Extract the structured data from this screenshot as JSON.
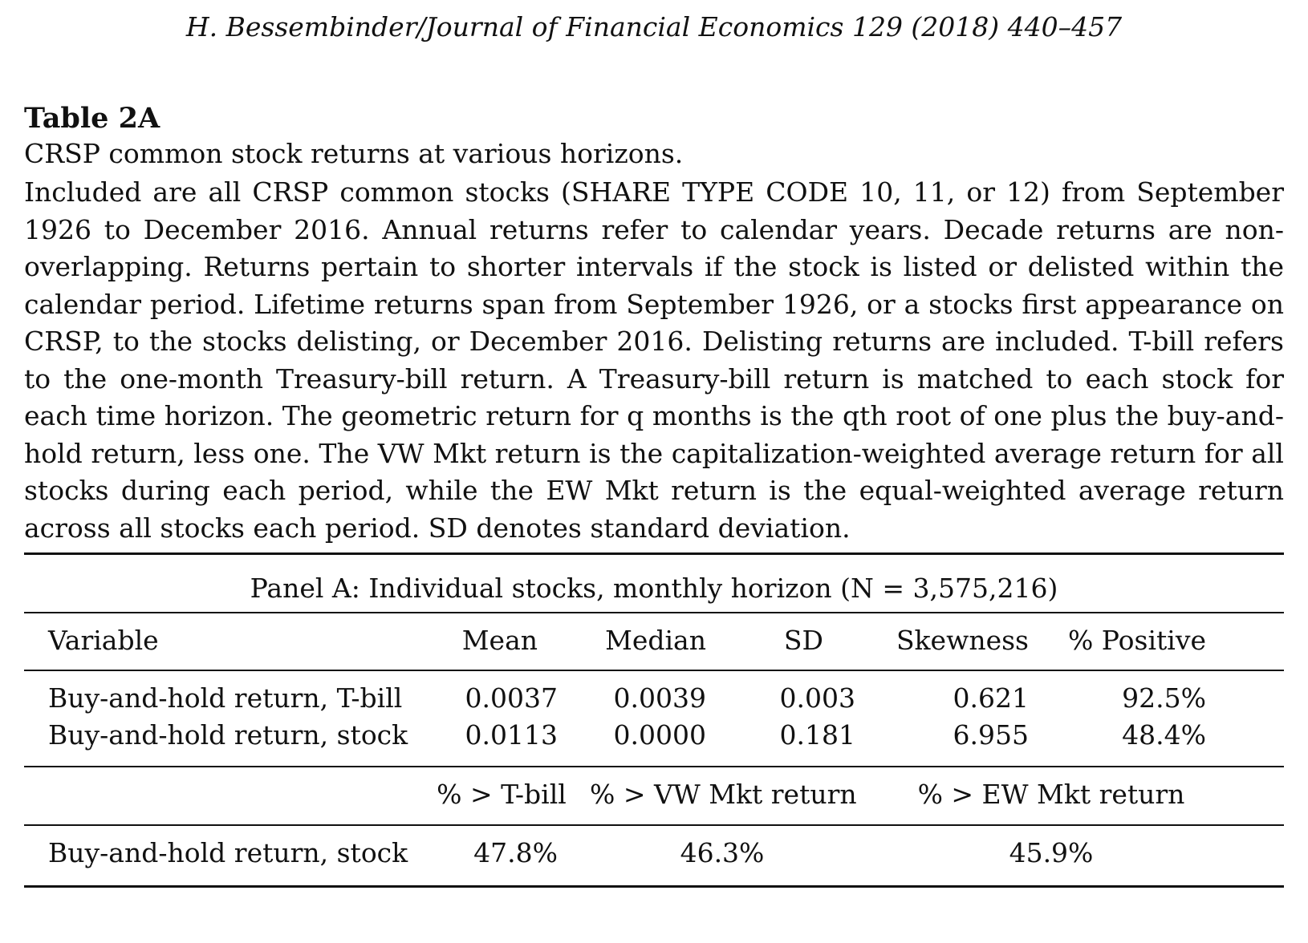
{
  "running_head": "H. Bessembinder/Journal of Financial Economics 129 (2018) 440–457",
  "table": {
    "label": "Table 2A",
    "subtitle": "CRSP common stock returns at various horizons.",
    "caption": "Included are all CRSP common stocks (SHARE TYPE CODE 10, 11, or 12) from September 1926 to December 2016. Annual returns refer to calendar years. Decade returns are non-overlapping. Returns pertain to shorter intervals if the stock is listed or delisted within the calendar period. Lifetime returns span from September 1926, or a stocks first appearance on CRSP, to the stocks delisting, or December 2016. Delisting returns are included. T-bill refers to the one-month Treasury-bill return. A Treasury-bill return is matched to each stock for each time horizon. The geometric return for q months is the qth root of one plus the buy-and-hold return, less one. The VW Mkt return is the capitalization-weighted average return for all stocks during each period, while the EW Mkt return is the equal-weighted average return across all stocks each period. SD denotes standard deviation.",
    "panel_title": "Panel A: Individual stocks, monthly horizon (N = 3,575,216)",
    "headers": [
      "Variable",
      "Mean",
      "Median",
      "SD",
      "Skewness",
      "% Positive"
    ],
    "rows": [
      [
        "Buy-and-hold return, T-bill",
        "0.0037",
        "0.0039",
        "0.003",
        "0.621",
        "92.5%"
      ],
      [
        "Buy-and-hold return, stock",
        "0.0113",
        "0.0000",
        "0.181",
        "6.955",
        "48.4%"
      ]
    ],
    "compare_headers": [
      "% > T-bill",
      "% > VW Mkt return",
      "% > EW Mkt return"
    ],
    "compare_row": [
      "Buy-and-hold return, stock",
      "47.8%",
      "46.3%",
      "45.9%"
    ]
  }
}
